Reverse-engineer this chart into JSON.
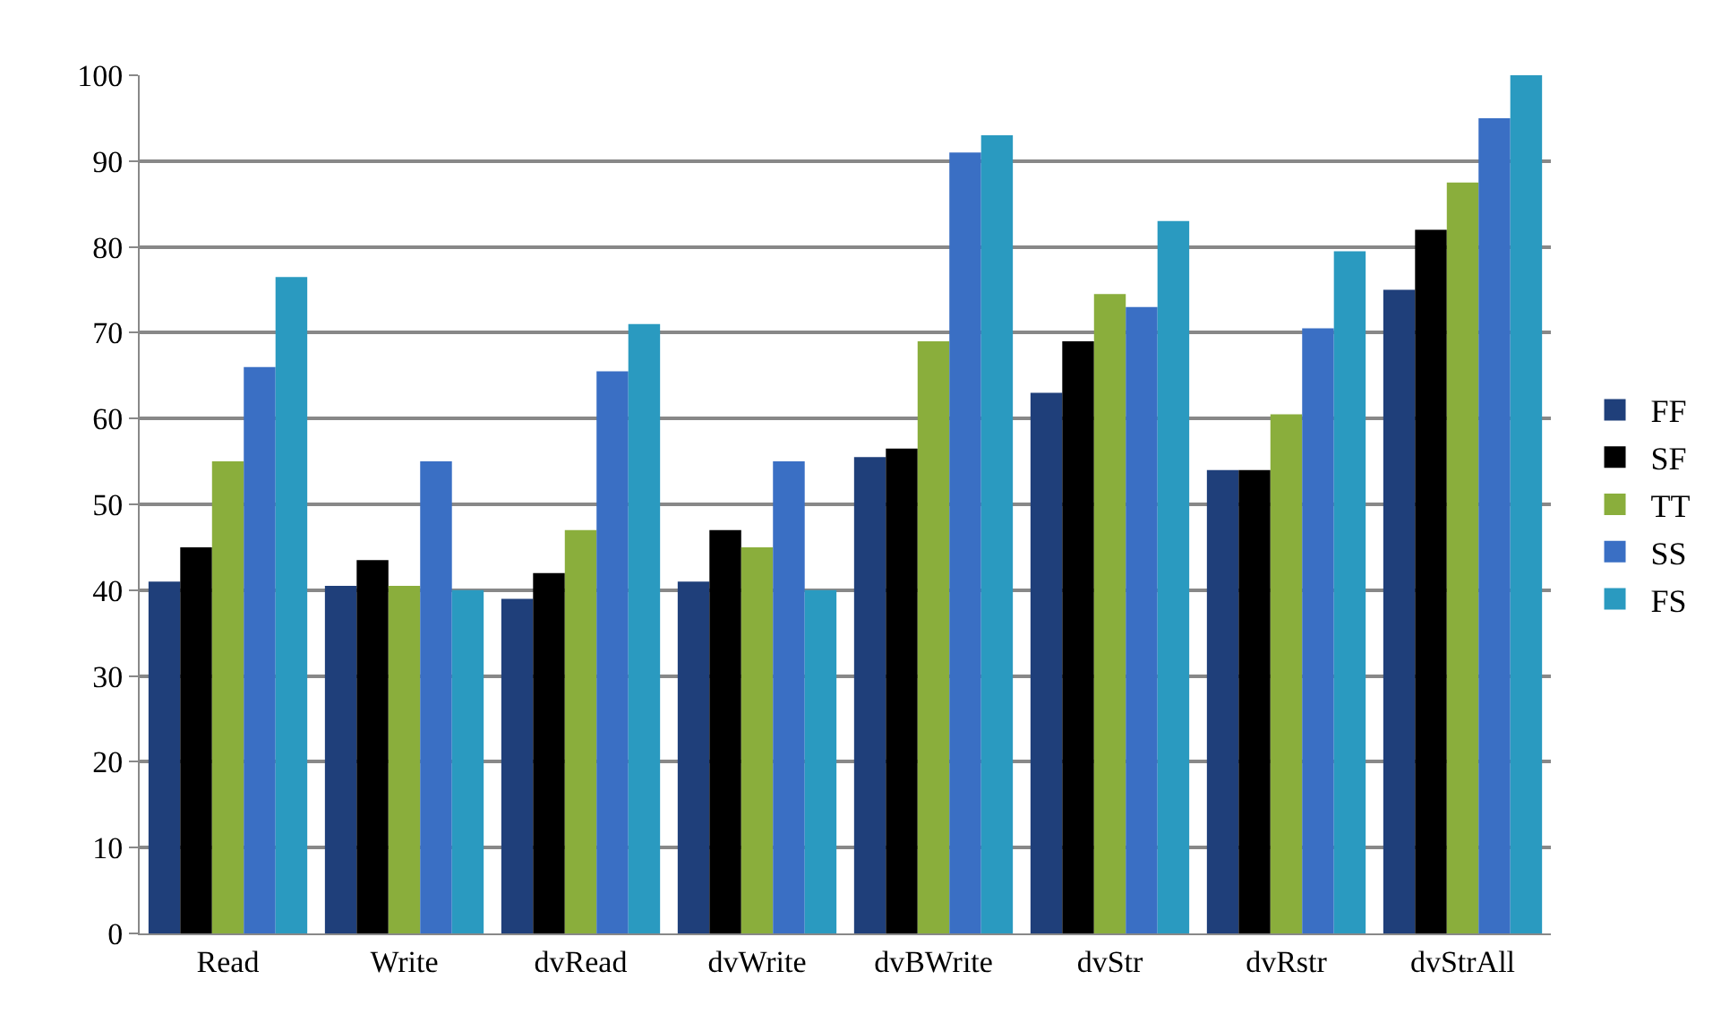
{
  "chart_data": {
    "type": "bar",
    "categories": [
      "Read",
      "Write",
      "dvRead",
      "dvWrite",
      "dvBWrite",
      "dvStr",
      "dvRstr",
      "dvStrAll"
    ],
    "series": [
      {
        "name": "FF",
        "color": "#1f3f7a",
        "values": [
          41,
          40.5,
          39,
          41,
          55.5,
          63,
          54,
          75
        ]
      },
      {
        "name": "SF",
        "color": "#000000",
        "values": [
          45,
          43.5,
          42,
          47,
          56.5,
          69,
          54,
          82
        ]
      },
      {
        "name": "TT",
        "color": "#8aae3c",
        "values": [
          55,
          40.5,
          47,
          45,
          69,
          74.5,
          60.5,
          87.5
        ]
      },
      {
        "name": "SS",
        "color": "#3a6fc4",
        "values": [
          66,
          55,
          65.5,
          55,
          91,
          73,
          70.5,
          95
        ]
      },
      {
        "name": "FS",
        "color": "#2a9ac0",
        "values": [
          76.5,
          40,
          71,
          40,
          93,
          83,
          79.5,
          100
        ]
      }
    ],
    "ylim": [
      0,
      100
    ],
    "yticks": [
      0,
      10,
      20,
      30,
      40,
      50,
      60,
      70,
      80,
      90,
      100
    ],
    "grid": "y",
    "legend": "right"
  }
}
